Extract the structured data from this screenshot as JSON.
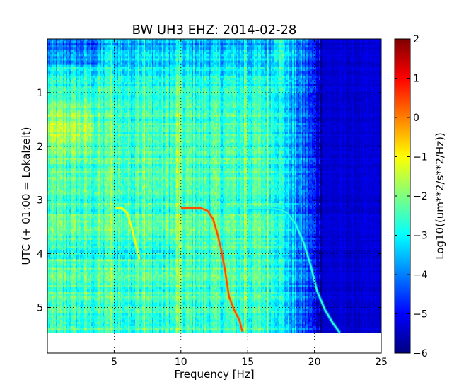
{
  "chart_data": {
    "type": "heatmap",
    "title": "BW UH3 EHZ: 2014-02-28",
    "xlabel": "Frequency [Hz]",
    "ylabel": "UTC (+ 01:00 = Lokalzeit)",
    "colorbar_label": "Log10((um**2/s**2/Hz))",
    "xlim": [
      0,
      25
    ],
    "ylim": [
      5.85,
      0
    ],
    "data_extent_y": [
      0,
      5.47
    ],
    "x_ticks": [
      5,
      10,
      15,
      20,
      25
    ],
    "y_ticks": [
      1,
      2,
      3,
      4,
      5
    ],
    "colorbar_range": [
      -6,
      2
    ],
    "colorbar_ticks": [
      2,
      1,
      0,
      -1,
      -2,
      -3,
      -4,
      -5,
      -6
    ],
    "colormap": "jet",
    "grid": true,
    "colors": {
      "jet": [
        "#00007f",
        "#0000ff",
        "#007fff",
        "#00ffff",
        "#7fff7f",
        "#ffff00",
        "#ff7f00",
        "#ff0000",
        "#7f0000"
      ]
    },
    "tonal_tracks": [
      {
        "points": [
          [
            5.1,
            3.15
          ],
          [
            5.6,
            3.15
          ],
          [
            6.0,
            3.25
          ],
          [
            6.3,
            3.5
          ],
          [
            6.6,
            3.8
          ],
          [
            6.9,
            4.1
          ]
        ],
        "level": -1.0
      },
      {
        "points": [
          [
            10.0,
            3.15
          ],
          [
            11.5,
            3.15
          ],
          [
            12.0,
            3.2
          ],
          [
            12.4,
            3.35
          ],
          [
            12.7,
            3.6
          ],
          [
            13.0,
            3.9
          ],
          [
            13.3,
            4.3
          ],
          [
            13.6,
            4.8
          ],
          [
            14.0,
            5.05
          ],
          [
            14.4,
            5.25
          ],
          [
            14.6,
            5.45
          ]
        ],
        "level": 0.4
      },
      {
        "points": [
          [
            15.0,
            3.15
          ],
          [
            16.5,
            3.15
          ],
          [
            17.5,
            3.18
          ],
          [
            18.0,
            3.25
          ],
          [
            18.6,
            3.45
          ],
          [
            19.2,
            3.8
          ],
          [
            19.7,
            4.2
          ],
          [
            20.2,
            4.7
          ],
          [
            20.8,
            5.05
          ],
          [
            21.4,
            5.3
          ],
          [
            21.9,
            5.47
          ]
        ],
        "level": -2.7
      }
    ]
  }
}
